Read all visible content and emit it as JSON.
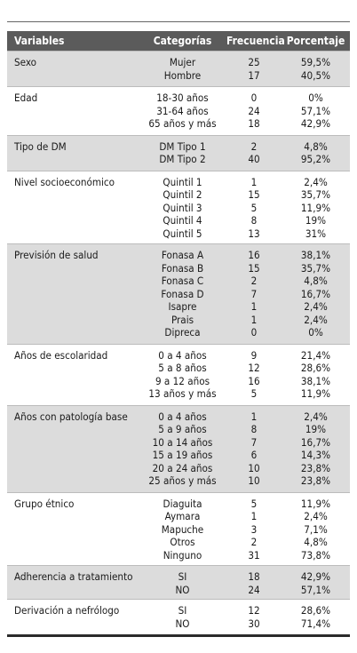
{
  "headers": [
    "Variables",
    "Categorías",
    "Frecuencia",
    "Porcentaje"
  ],
  "groups": [
    {
      "variable": "Sexo",
      "shaded": true,
      "rows": [
        {
          "cat": "Mujer",
          "freq": "25",
          "pct": "59,5%"
        },
        {
          "cat": "Hombre",
          "freq": "17",
          "pct": "40,5%"
        }
      ]
    },
    {
      "variable": "Edad",
      "shaded": false,
      "rows": [
        {
          "cat": "18-30 años",
          "freq": "0",
          "pct": "0%"
        },
        {
          "cat": "31-64 años",
          "freq": "24",
          "pct": "57,1%"
        },
        {
          "cat": "65 años y más",
          "freq": "18",
          "pct": "42,9%"
        }
      ]
    },
    {
      "variable": "Tipo de DM",
      "shaded": true,
      "rows": [
        {
          "cat": "DM Tipo 1",
          "freq": "2",
          "pct": "4,8%"
        },
        {
          "cat": "DM Tipo 2",
          "freq": "40",
          "pct": "95,2%"
        }
      ]
    },
    {
      "variable": "Nivel socioeconómico",
      "shaded": false,
      "rows": [
        {
          "cat": "Quintil 1",
          "freq": "1",
          "pct": "2,4%"
        },
        {
          "cat": "Quintil 2",
          "freq": "15",
          "pct": "35,7%"
        },
        {
          "cat": "Quintil 3",
          "freq": "5",
          "pct": "11,9%"
        },
        {
          "cat": "Quintil 4",
          "freq": "8",
          "pct": "19%"
        },
        {
          "cat": "Quintil 5",
          "freq": "13",
          "pct": "31%"
        }
      ]
    },
    {
      "variable": "Previsión de salud",
      "shaded": true,
      "rows": [
        {
          "cat": "Fonasa A",
          "freq": "16",
          "pct": "38,1%"
        },
        {
          "cat": "Fonasa B",
          "freq": "15",
          "pct": "35,7%"
        },
        {
          "cat": "Fonasa C",
          "freq": "2",
          "pct": "4,8%"
        },
        {
          "cat": "Fonasa D",
          "freq": "7",
          "pct": "16,7%"
        },
        {
          "cat": "Isapre",
          "freq": "1",
          "pct": "2,4%"
        },
        {
          "cat": "Prais",
          "freq": "1",
          "pct": "2,4%"
        },
        {
          "cat": "Dipreca",
          "freq": "0",
          "pct": "0%"
        }
      ]
    },
    {
      "variable": "Años de escolaridad",
      "shaded": false,
      "rows": [
        {
          "cat": "0 a 4 años",
          "freq": "9",
          "pct": "21,4%"
        },
        {
          "cat": "5 a 8 años",
          "freq": "12",
          "pct": "28,6%"
        },
        {
          "cat": "9 a 12 años",
          "freq": "16",
          "pct": "38,1%"
        },
        {
          "cat": "13 años y más",
          "freq": "5",
          "pct": "11,9%"
        }
      ]
    },
    {
      "variable": "Años con patología base",
      "shaded": true,
      "rows": [
        {
          "cat": "0 a 4 años",
          "freq": "1",
          "pct": "2,4%"
        },
        {
          "cat": "5 a 9 años",
          "freq": "8",
          "pct": "19%"
        },
        {
          "cat": "10 a 14 años",
          "freq": "7",
          "pct": "16,7%"
        },
        {
          "cat": "15 a 19 años",
          "freq": "6",
          "pct": "14,3%"
        },
        {
          "cat": "20 a 24 años",
          "freq": "10",
          "pct": "23,8%"
        },
        {
          "cat": "25 años y más",
          "freq": "10",
          "pct": "23,8%"
        }
      ]
    },
    {
      "variable": "Grupo étnico",
      "shaded": false,
      "rows": [
        {
          "cat": "Diaguita",
          "freq": "5",
          "pct": "11,9%"
        },
        {
          "cat": "Aymara",
          "freq": "1",
          "pct": "2,4%"
        },
        {
          "cat": "Mapuche",
          "freq": "3",
          "pct": "7,1%"
        },
        {
          "cat": "Otros",
          "freq": "2",
          "pct": "4,8%"
        },
        {
          "cat": "Ninguno",
          "freq": "31",
          "pct": "73,8%"
        }
      ]
    },
    {
      "variable": "Adherencia a tratamiento",
      "shaded": true,
      "rows": [
        {
          "cat": "SI",
          "freq": "18",
          "pct": "42,9%"
        },
        {
          "cat": "NO",
          "freq": "24",
          "pct": "57,1%"
        }
      ]
    },
    {
      "variable": "Derivación a nefrólogo",
      "shaded": false,
      "rows": [
        {
          "cat": "SI",
          "freq": "12",
          "pct": "28,6%"
        },
        {
          "cat": "NO",
          "freq": "30",
          "pct": "71,4%"
        }
      ]
    }
  ]
}
